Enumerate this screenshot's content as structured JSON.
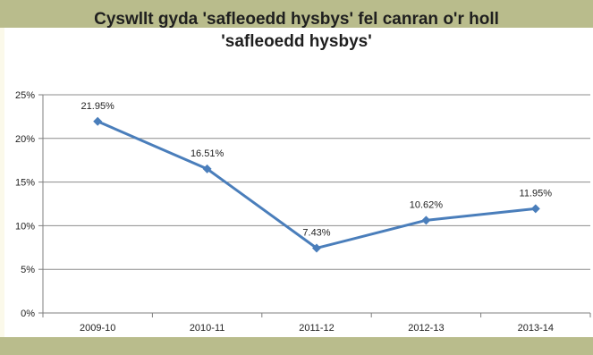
{
  "chart_data": {
    "type": "line",
    "title_lines": [
      "Cyswllt gyda 'safleoedd hysbys' fel canran o'r holl",
      "'safleoedd hysbys'"
    ],
    "categories": [
      "2009-10",
      "2010-11",
      "2011-12",
      "2012-13",
      "2013-14"
    ],
    "series": [
      {
        "values": [
          21.95,
          16.51,
          7.43,
          10.62,
          11.95
        ],
        "data_labels": [
          "21.95%",
          "16.51%",
          "7.43%",
          "10.62%",
          "11.95%"
        ],
        "color": "#4a7ebb"
      }
    ],
    "yticks": [
      0,
      5,
      10,
      15,
      20,
      25
    ],
    "ytick_labels": [
      "0%",
      "5%",
      "10%",
      "15%",
      "20%",
      "25%"
    ],
    "ylim": [
      0,
      25
    ],
    "grid": true,
    "legend": false
  },
  "colors": {
    "band": "#b9bc8c",
    "background": "#fbf9ea",
    "gridline": "#8c8c8c",
    "series": "#4a7ebb"
  }
}
